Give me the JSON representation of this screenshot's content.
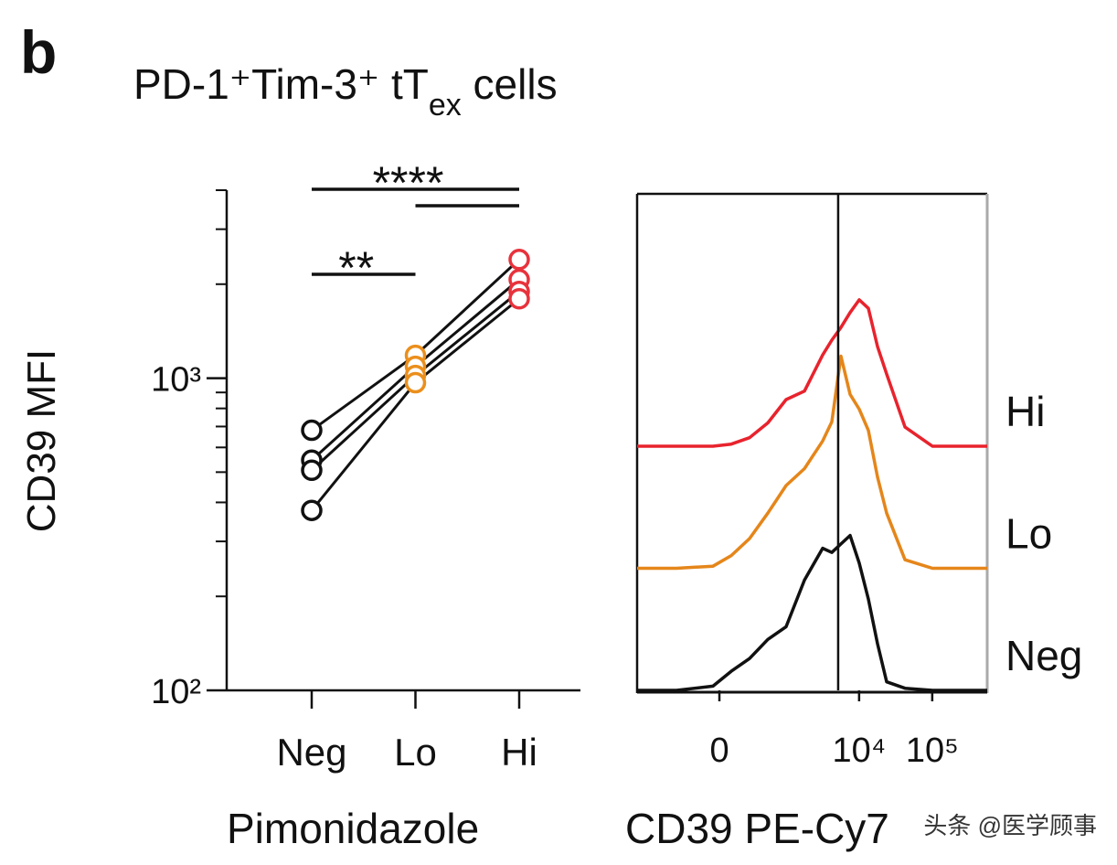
{
  "panel_label": "b",
  "title_parts": [
    "PD-1⁺Tim-3⁺ tT",
    "ex",
    " cells"
  ],
  "watermark": "头条 @医学顾事",
  "chart_data": [
    {
      "type": "paired-dots",
      "categories": [
        "Neg",
        "Lo",
        "Hi"
      ],
      "category_colors": [
        "#111111",
        "#eb8f1c",
        "#e8323c"
      ],
      "line_color": "#111111",
      "series": [
        {
          "values": [
            681,
            1183,
            2399
          ]
        },
        {
          "values": [
            546,
            1091,
            2070
          ]
        },
        {
          "values": [
            507,
            1020,
            1896
          ]
        },
        {
          "values": [
            377,
            967,
            1796
          ]
        }
      ],
      "y_label": "CD39 MFI",
      "x_label": "Pimonidazole",
      "log_scale": true,
      "ylim": [
        100,
        4000
      ],
      "yticks": [
        {
          "value": 100,
          "label": "10²"
        },
        {
          "value": 1000,
          "label": "10³"
        }
      ],
      "yminor": [
        200,
        300,
        400,
        500,
        600,
        700,
        800,
        900,
        2000,
        3000,
        4000
      ],
      "significance": [
        {
          "text": "****",
          "pairs": [
            [
              "Neg",
              "Hi"
            ],
            [
              "Lo",
              "Hi"
            ]
          ]
        },
        {
          "text": "**",
          "pairs": [
            [
              "Neg",
              "Lo"
            ]
          ]
        }
      ]
    },
    {
      "type": "offset-histogram",
      "x": [
        -1631,
        -443,
        -50,
        94,
        270,
        539,
        989,
        1781,
        3173,
        4231,
        5650,
        7528,
        10049,
        13400,
        17860,
        23840,
        42430,
        100600,
        564300
      ],
      "series": [
        {
          "name": "Hi",
          "color": "#e8232d",
          "values": [
            0,
            0,
            0,
            1,
            4,
            11,
            22,
            26,
            43,
            50,
            56,
            63,
            69,
            65,
            47,
            34,
            9,
            0,
            0
          ]
        },
        {
          "name": "Lo",
          "color": "#e5861a",
          "values": [
            0,
            0,
            1,
            6,
            14,
            26,
            39,
            47,
            60,
            69,
            100,
            82,
            75,
            65,
            43,
            26,
            4,
            0,
            0
          ]
        },
        {
          "name": "Neg",
          "color": "#111111",
          "values": [
            0,
            0,
            2,
            9,
            15,
            24,
            30,
            52,
            67,
            65,
            69,
            73,
            60,
            43,
            22,
            4,
            1,
            0,
            0
          ]
        }
      ],
      "x_label": "CD39 PE-Cy7",
      "x_scale": "biexponential",
      "cofactor": 246,
      "xlim": [
        -1631,
        564300
      ],
      "xticks": [
        {
          "value": 0,
          "label": "0"
        },
        {
          "value": 10000,
          "label": "10⁴"
        },
        {
          "value": 100000,
          "label": "10⁵"
        }
      ],
      "gate": 5170
    }
  ]
}
